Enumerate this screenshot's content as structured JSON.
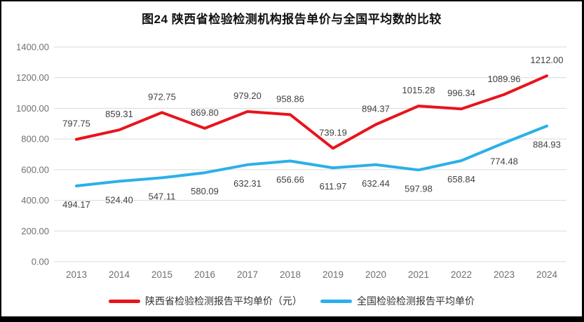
{
  "chart_data": {
    "type": "line",
    "title": "图24 陕西省检验检测机构报告单价与全国平均数的比较",
    "categories": [
      "2013",
      "2014",
      "2015",
      "2016",
      "2017",
      "2018",
      "2019",
      "2020",
      "2021",
      "2022",
      "2023",
      "2024"
    ],
    "series": [
      {
        "name": "陕西省检验检测报告平均单价（元）",
        "color": "#e8141c",
        "label_position": "above",
        "values": [
          797.75,
          859.31,
          972.75,
          869.8,
          979.2,
          958.86,
          739.19,
          894.37,
          1015.28,
          996.34,
          1089.96,
          1212.0
        ]
      },
      {
        "name": "全国检验检测报告平均单价",
        "color": "#2bb0e8",
        "label_position": "below",
        "values": [
          494.17,
          524.4,
          547.11,
          580.09,
          632.31,
          656.66,
          611.97,
          632.44,
          597.98,
          658.84,
          774.48,
          884.93
        ]
      }
    ],
    "ylim": [
      0,
      1400
    ],
    "ytick_step": 200,
    "ytick_decimals": 2,
    "grid": "horizontal",
    "legend_position": "bottom",
    "colors": {
      "gridline": "#d9d9d9",
      "axis_label": "#6f6f6f",
      "data_label": "#404040"
    }
  }
}
